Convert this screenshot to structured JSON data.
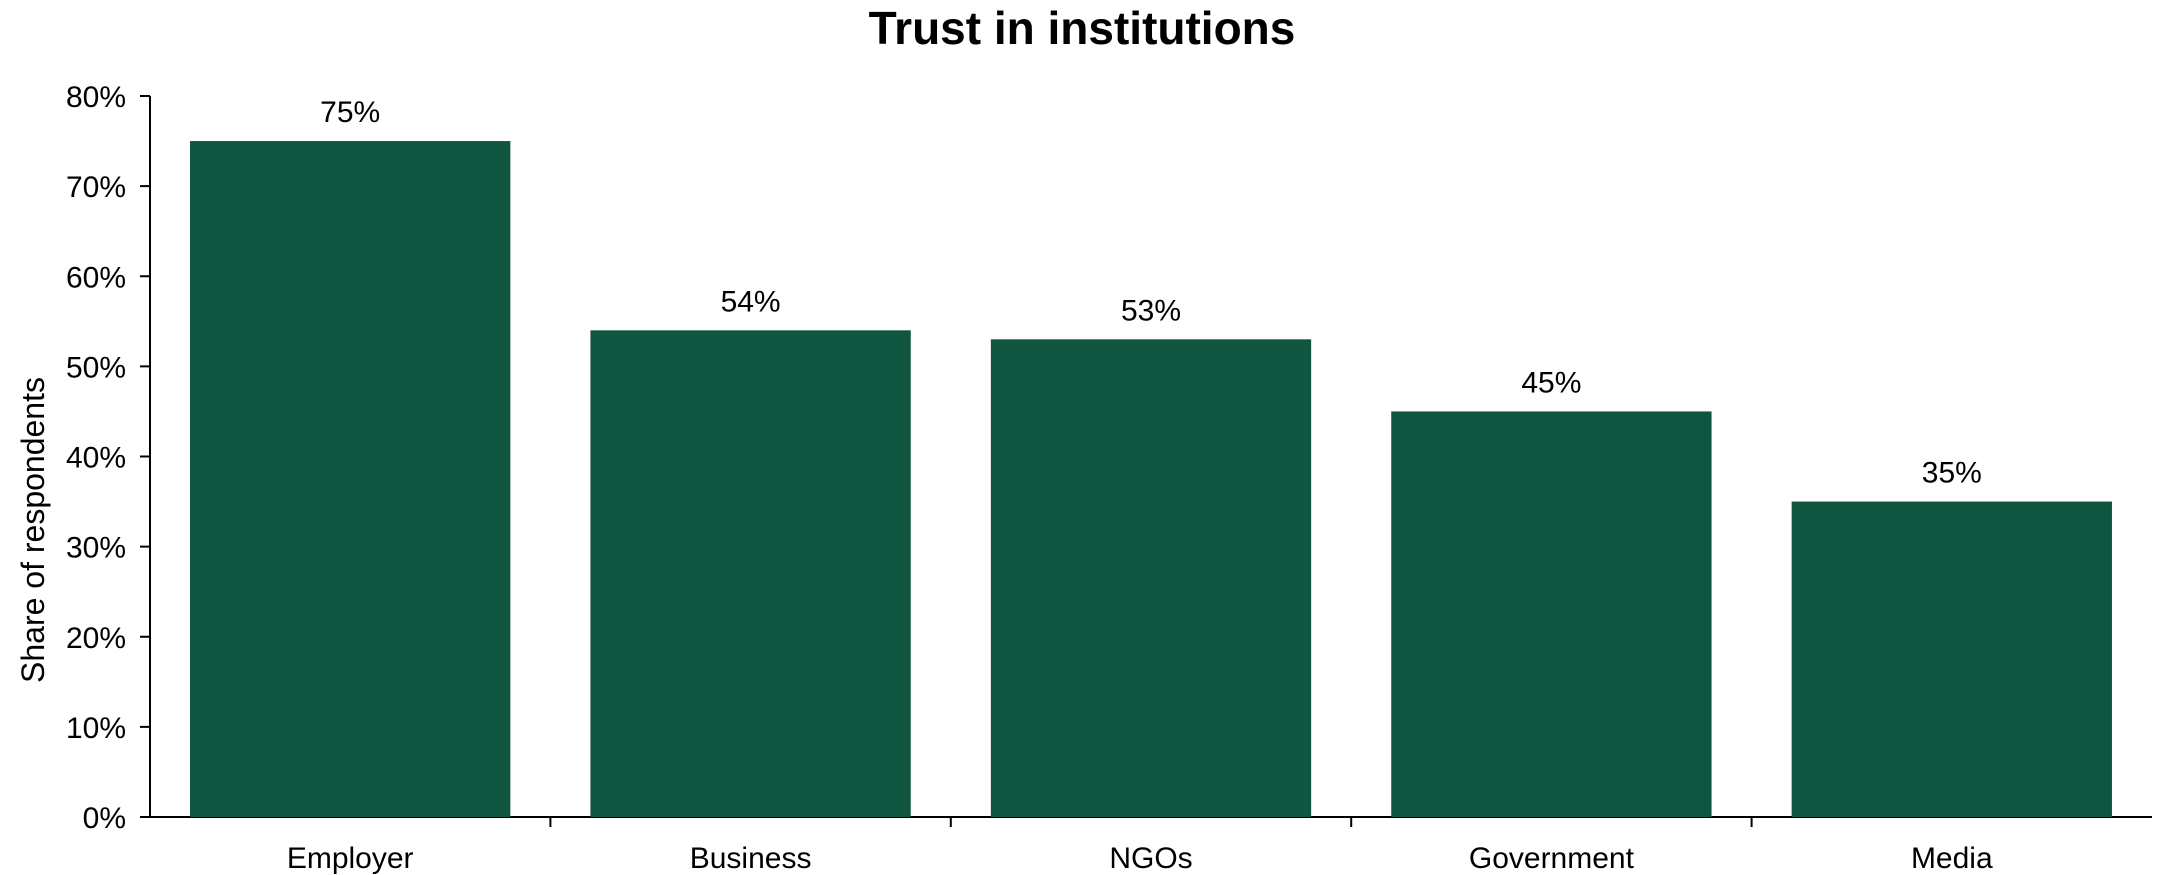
{
  "chart_data": {
    "type": "bar",
    "title": "Trust in institutions",
    "xlabel": "",
    "ylabel": "Share of respondents",
    "categories": [
      "Employer",
      "Business",
      "NGOs",
      "Government",
      "Media"
    ],
    "values": [
      75,
      54,
      53,
      45,
      35
    ],
    "data_labels": [
      "75%",
      "54%",
      "53%",
      "45%",
      "35%"
    ],
    "ylim": [
      0,
      80
    ],
    "yticks": [
      0,
      10,
      20,
      30,
      40,
      50,
      60,
      70,
      80
    ],
    "ytick_labels": [
      "0%",
      "10%",
      "20%",
      "30%",
      "40%",
      "50%",
      "60%",
      "70%",
      "80%"
    ],
    "bar_color": "#10553f",
    "grid": false,
    "legend": "none"
  }
}
